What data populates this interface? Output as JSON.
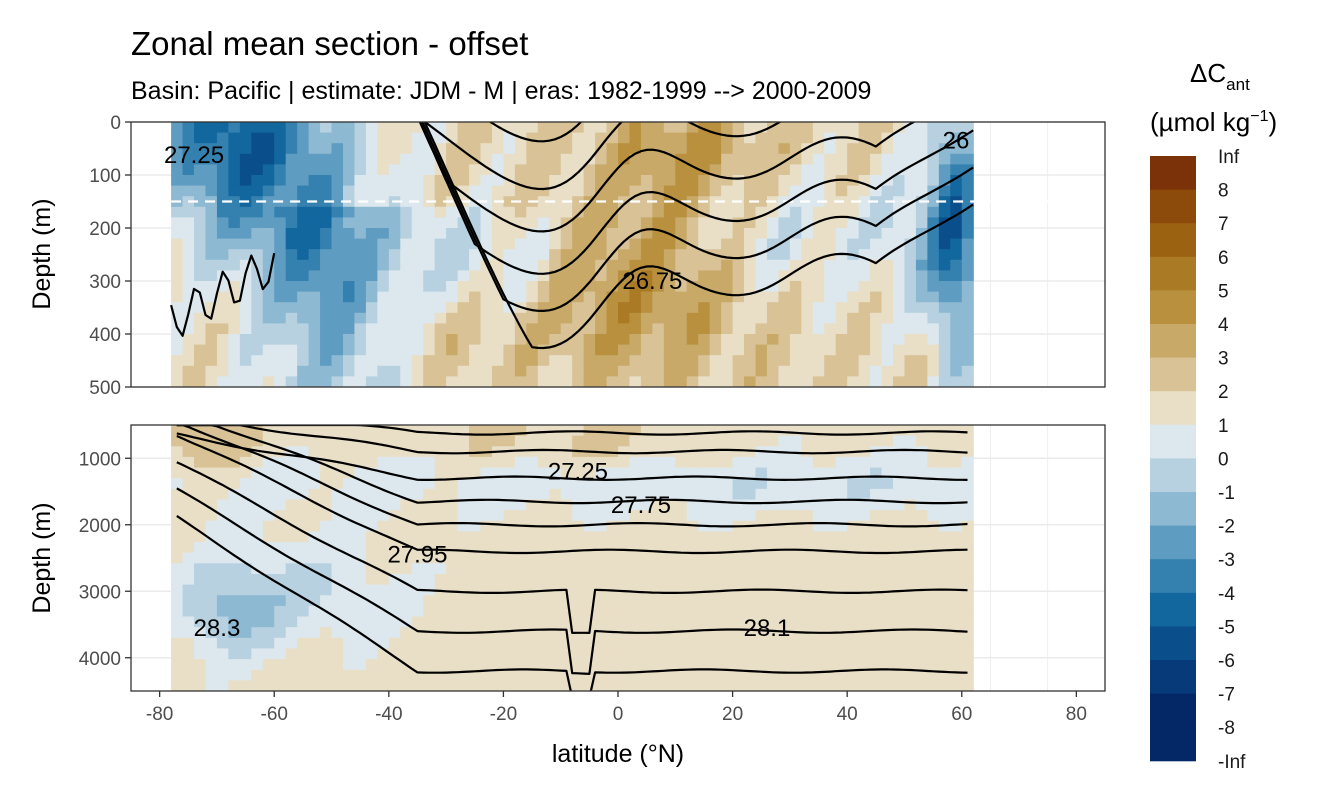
{
  "chart_data": {
    "type": "heatmap",
    "title": "Zonal mean section - offset",
    "subtitle": "Basin: Pacific | estimate: JDM - M | eras: 1982-1999 --> 2000-2009",
    "xlabel": "latitude (°N)",
    "ylabel": "Depth (m)",
    "xlim": [
      -85,
      85
    ],
    "x_ticks": [
      -80,
      -60,
      -40,
      -20,
      0,
      20,
      40,
      60,
      80
    ],
    "data_lat_range": [
      -78,
      62
    ],
    "panels": [
      {
        "name": "upper",
        "ylim": [
          0,
          500
        ],
        "y_ticks": [
          0,
          100,
          200,
          300,
          400,
          500
        ],
        "reference_line_depth": 150,
        "contour_labels": [
          {
            "text": "27.25",
            "lat": -74,
            "depth": 62
          },
          {
            "text": "26",
            "lat": 59,
            "depth": 35
          },
          {
            "text": "26.75",
            "lat": 6,
            "depth": 300
          }
        ]
      },
      {
        "name": "lower",
        "ylim": [
          500,
          4500
        ],
        "y_ticks": [
          1000,
          2000,
          3000,
          4000
        ],
        "contour_labels": [
          {
            "text": "27.25",
            "lat": -7,
            "depth": 1200
          },
          {
            "text": "27.75",
            "lat": 4,
            "depth": 1700
          },
          {
            "text": "27.95",
            "lat": -35,
            "depth": 2450
          },
          {
            "text": "28.3",
            "lat": -70,
            "depth": 3550
          },
          {
            "text": "28.1",
            "lat": 26,
            "depth": 3550
          }
        ]
      }
    ],
    "legend": {
      "title": "ΔC",
      "title_subscript": "ant",
      "units": "(µmol kg",
      "units_superscript": "−1",
      "units_close": ")",
      "labels": [
        "Inf",
        "8",
        "7",
        "6",
        "5",
        "4",
        "3",
        "2",
        "1",
        "0",
        "-1",
        "-2",
        "-3",
        "-4",
        "-5",
        "-6",
        "-7",
        "-8",
        "-Inf"
      ],
      "colors": [
        "#6b1a05",
        "#7c3208",
        "#8c4a0b",
        "#9b6212",
        "#aa7a24",
        "#b9913e",
        "#c8a968",
        "#d8c296",
        "#e9dfc7",
        "#dce8ee",
        "#b7d1e1",
        "#8db9d2",
        "#5f9cc1",
        "#3481b0",
        "#12679f",
        "#0a4f8c",
        "#063a79",
        "#042766",
        "#021553"
      ]
    }
  }
}
